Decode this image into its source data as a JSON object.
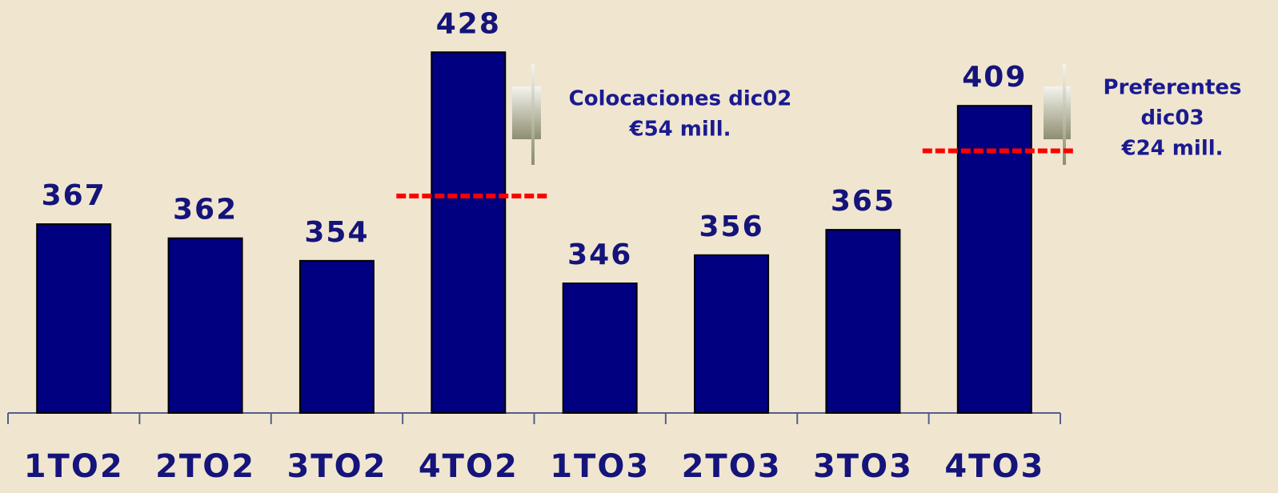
{
  "chart_data": {
    "type": "bar",
    "categories": [
      "1TO2",
      "2TO2",
      "3TO2",
      "4TO2",
      "1TO3",
      "2TO3",
      "3TO3",
      "4TO3"
    ],
    "values": [
      367,
      362,
      354,
      428,
      346,
      356,
      365,
      409
    ],
    "color": "#000080",
    "ylim": [
      300,
      440
    ],
    "annotations": [
      {
        "lines": [
          "Colocaciones dic02",
          "€54 mill."
        ],
        "category": 3,
        "value": 377
      },
      {
        "lines": [
          "Preferentes",
          "dic03",
          "€24 mill."
        ],
        "category": 7,
        "value": 393
      }
    ]
  }
}
